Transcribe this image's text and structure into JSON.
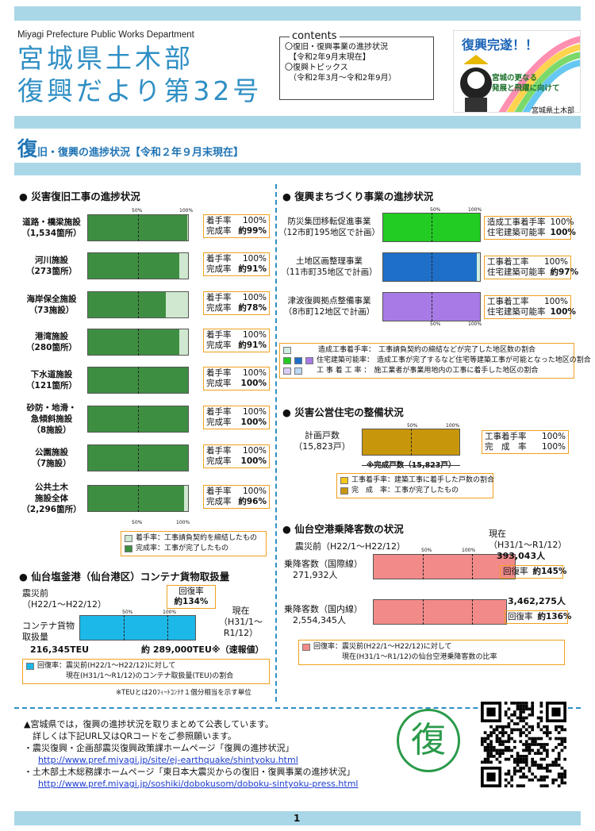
{
  "header": {
    "department": "Miyagi Prefecture Public Works Department",
    "title_line1": "宮城県土木部",
    "title_line2": "復興だより第32号"
  },
  "contents": {
    "label": "contents",
    "items": [
      "〇復旧・復興事業の進捗状況",
      "　【令和2年9月末現在】",
      "〇復興トピックス",
      "　（令和2年3月～令和2年9月）"
    ]
  },
  "badge": {
    "title": "復興完遂！！",
    "line1": "宮城の更なる",
    "line2": "発展と飛躍に向けて",
    "org": "宮城県土木部"
  },
  "section": {
    "big": "復",
    "rest": "旧・復興の進捗状況【令和２年９月末現在】"
  },
  "scale": {
    "s50": "50%",
    "s100": "100%"
  },
  "disaster": {
    "heading": "● 災害復旧工事の進捗状況",
    "start_label": "着手率",
    "done_label": "完成率",
    "items": [
      {
        "name": "道路・橋梁施設\n（1,534箇所）",
        "start": "100%",
        "done": "約99%",
        "done_value": 99,
        "start_value": 100
      },
      {
        "name": "河川施設\n（273箇所）",
        "start": "100%",
        "done": "約91%",
        "done_value": 91,
        "start_value": 100
      },
      {
        "name": "海岸保全施設\n（73施設）",
        "start": "100%",
        "done": "約78%",
        "done_value": 78,
        "start_value": 100
      },
      {
        "name": "港湾施設\n（280箇所）",
        "start": "100%",
        "done": "約91%",
        "done_value": 91,
        "start_value": 100
      },
      {
        "name": "下水道施設\n（121箇所）",
        "start": "100%",
        "done": "100%",
        "done_value": 100,
        "start_value": 100
      },
      {
        "name": "砂防・地滑・\n急傾斜施設\n（8施設）",
        "start": "100%",
        "done": "100%",
        "done_value": 100,
        "start_value": 100
      },
      {
        "name": "公園施設\n（7施設）",
        "start": "100%",
        "done": "100%",
        "done_value": 100,
        "start_value": 100
      },
      {
        "name": "公共土木\n施設全体\n（2,296箇所）",
        "start": "100%",
        "done": "約96%",
        "done_value": 96,
        "start_value": 100
      }
    ],
    "legend": [
      {
        "text": "着手率：工事請負契約を締結したもの",
        "color": "#cfe8cf"
      },
      {
        "text": "完成率：工事が完了したもの",
        "color": "#3e8e41"
      }
    ]
  },
  "port": {
    "heading": "● 仙台塩釜港（仙台港区）コンテナ貨物取扱量",
    "before_label": "震災前\n（H22/1～H22/12）",
    "recovery_label": "回復率",
    "recovery_value": "約134%",
    "now_label": "現在\n（H31/1～\nR1/12）",
    "cargo_label": "コンテナ貨物\n取扱量",
    "before_value": "216,345TEU",
    "now_value": "約 289,000TEU※（速報値）",
    "ratio": 134,
    "legend": "回復率：震災前(H22/1～H22/12)に対して\n　　　　現在(H31/1～R1/12)のコンテナ取扱量(TEU)の割合",
    "legend_color": "#1cb8e8",
    "note": "※TEUとは20ﾌｨｰﾄｺﾝﾃﾅ１個分相当を示す単位"
  },
  "town": {
    "heading": "● 復興まちづくり事業の進捗状況",
    "items": [
      {
        "name": "防災集団移転促進事業\n（12市町195地区で計画）",
        "l1": "造成工事着手率",
        "v1": "100%",
        "l2": "住宅建築可能率",
        "v2": "100%",
        "color": "#22cc22",
        "value": 100
      },
      {
        "name": "土地区画整理事業\n（11市町35地区で計画）",
        "l1": "工事着工率",
        "v1": "100%",
        "l2": "住宅建築可能率",
        "v2": "約97%",
        "color": "#1e6fc8",
        "value": 97
      },
      {
        "name": "津波復興拠点整備事業\n（8市町12地区で計画）",
        "l1": "工事着工率",
        "v1": "100%",
        "l2": "住宅建築可能率",
        "v2": "100%",
        "color": "#a77ae6",
        "value": 100
      }
    ],
    "legend": [
      {
        "label": "造成工事着手率：",
        "text": "工事請負契約の締結などが完了した地区数の割合",
        "colors": [
          "#cfeee0"
        ]
      },
      {
        "label": "住宅建築可能率：",
        "text": "造成工事が完了するなど住宅等建築工事が可能となった地区の割合",
        "colors": [
          "#22cc22",
          "#1e6fc8",
          "#a77ae6"
        ]
      },
      {
        "label": "工 事 着 工 率 ：",
        "text": "施工業者が事業用地内の工事に着手した地区の割合",
        "colors": [
          "#d9ccf5",
          "#bcd8f5"
        ]
      }
    ]
  },
  "housing": {
    "heading": "● 災害公営住宅の整備状況",
    "name": "計画戸数\n（15,823戸）",
    "r1": "工事着手率",
    "v1": "100%",
    "r2": "完　成　率",
    "v2": "100%",
    "note": "※完成戸数（15,823戸）",
    "color": "#c8960a",
    "value": 100,
    "legend": [
      {
        "text": "工事着手率：建築工事に着手した戸数の割合",
        "color": "#f5c518"
      },
      {
        "text": "完　成　率：工事が完了したもの",
        "color": "#c8960a"
      }
    ]
  },
  "airport": {
    "heading": "● 仙台空港乗降客数の状況",
    "before_label": "震災前（H22/1～H22/12）",
    "now_label": "現在\n（H31/1～R1/12）",
    "items": [
      {
        "name": "乗降客数（国際線）\n　271,932人",
        "now": "393,043人",
        "rate_label": "回復率",
        "rate": "約145%",
        "value": 145
      },
      {
        "name": "乗降客数（国内線）\n　2,554,345人",
        "now": "3,462,275人",
        "rate_label": "回復率",
        "rate": "約136%",
        "value": 136
      }
    ],
    "color": "#f28a8a",
    "legend": "回復率：震災前(H22/1～H22/12)に対して\n　　　　現在(H31/1～R1/12)の仙台空港乗降客数の比率"
  },
  "bottom": {
    "line1": "▲宮城県では，復興の進捗状況を取りまとめて公表しています。",
    "line2": "　詳しくは下記URL又はQRコードをご参照願います。",
    "line3": "・震災復興・企画部震災復興政策課ホームページ「復興の進捗状況」",
    "url1": "http://www.pref.miyagi.jp/site/ej-earthquake/shintyoku.html",
    "line4": "・土木部土木総務課ホームページ「東日本大震災からの復旧・復興事業の進捗状況」",
    "url2": "http://www.pref.miyagi.jp/soshiki/dobokusom/doboku-sintyoku-press.html",
    "mark": "復"
  },
  "page_number": "1"
}
